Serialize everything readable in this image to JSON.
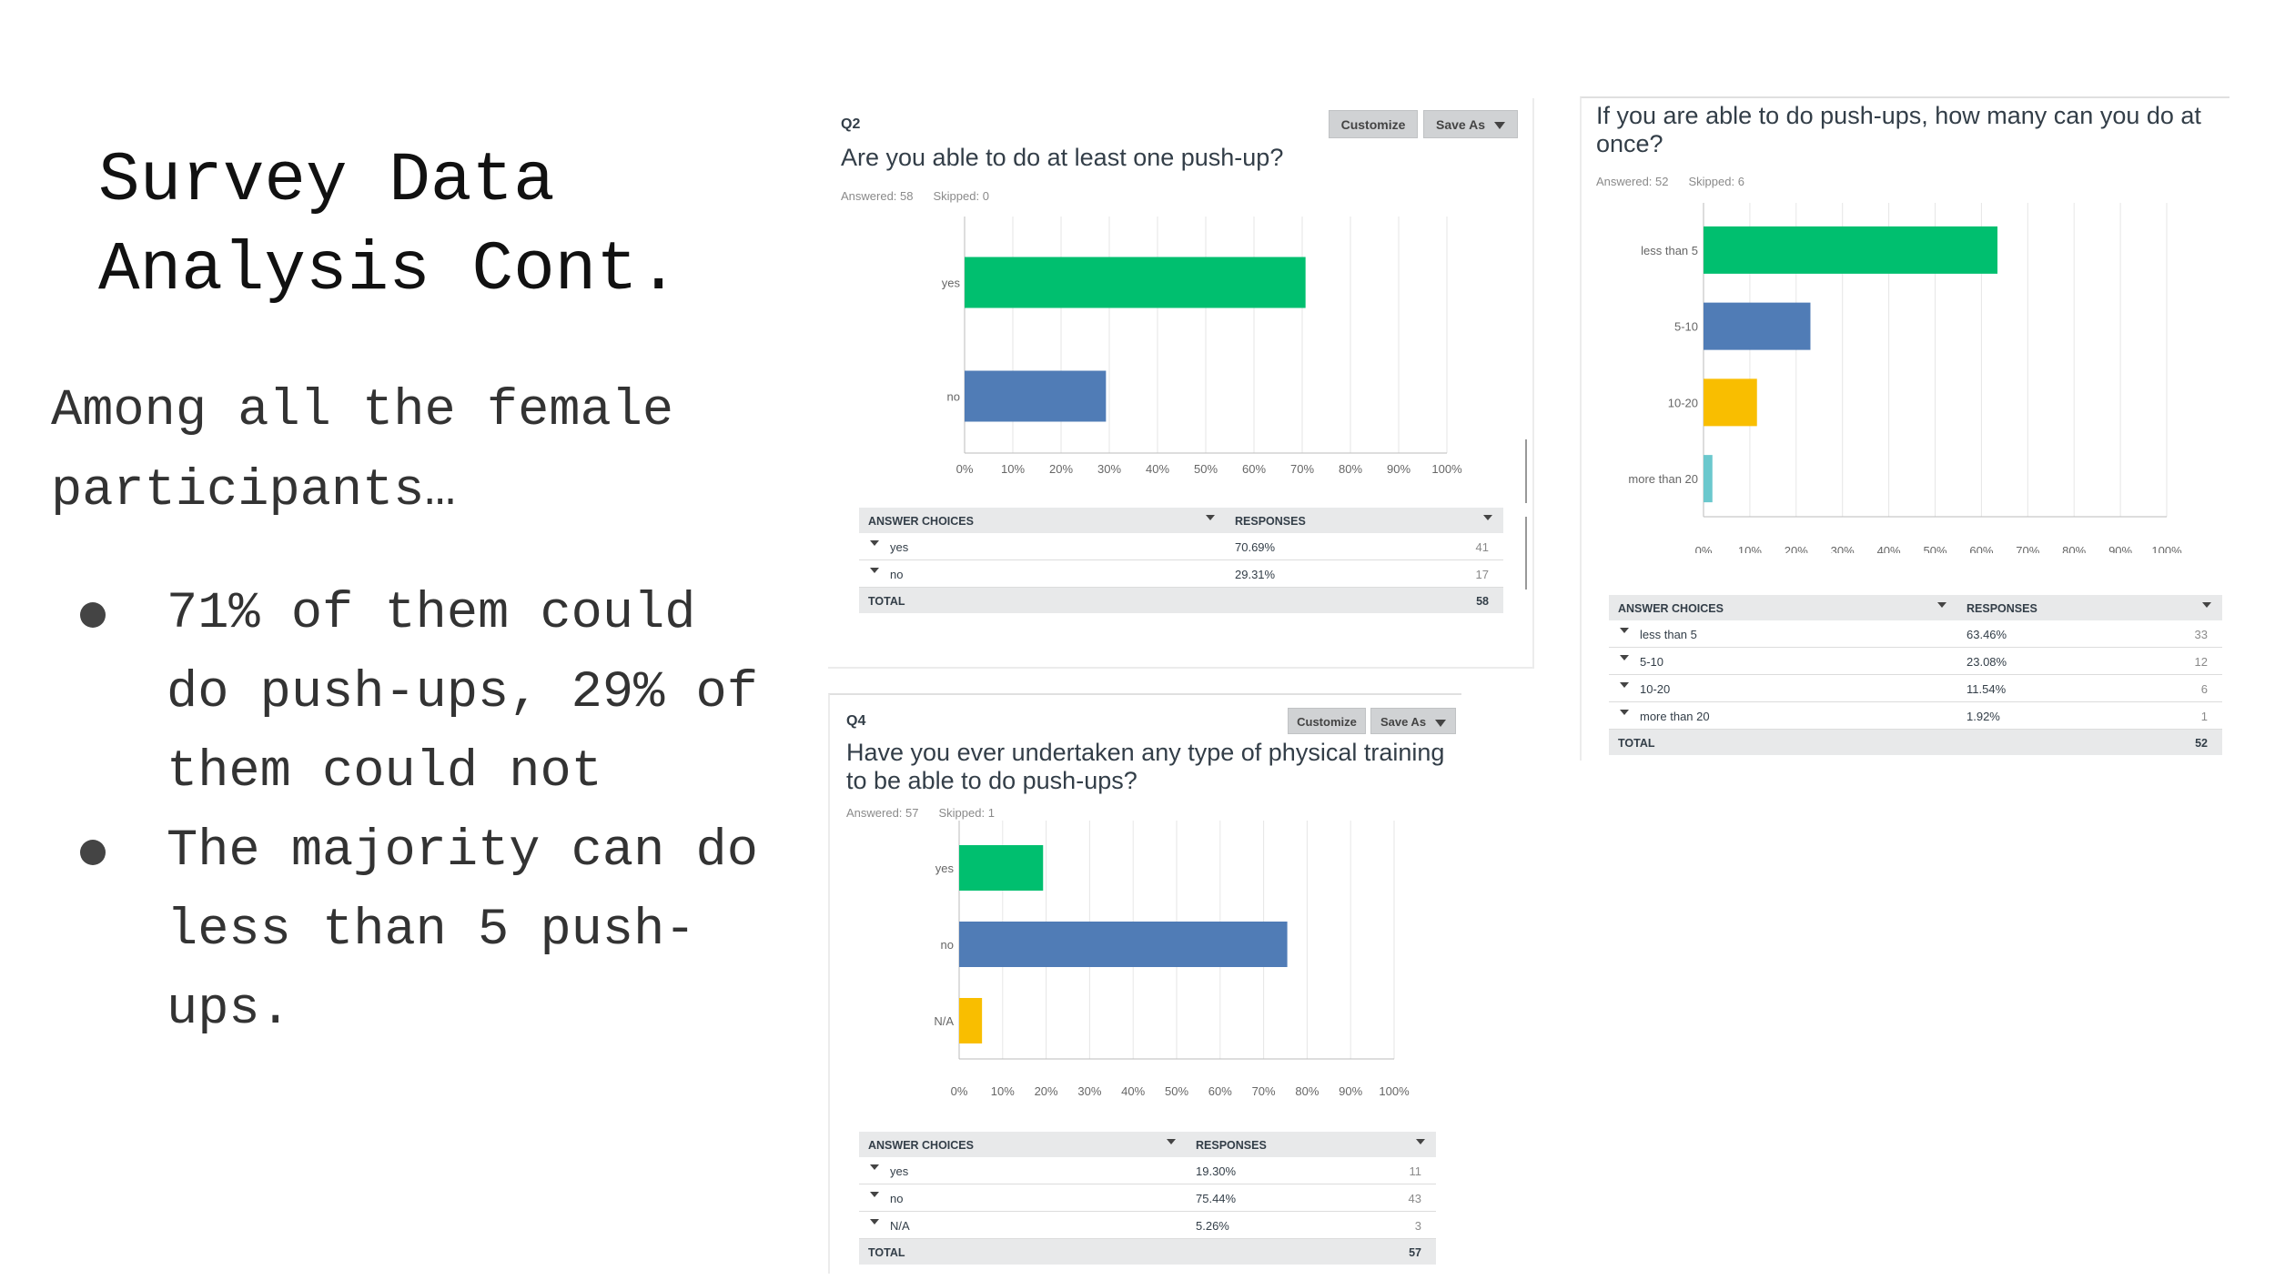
{
  "slide": {
    "title": "Survey Data\nAnalysis Cont.",
    "subtitle": "Among all the female participants…",
    "bullets": [
      "71% of them could do push-ups, 29% of them could not",
      "The majority can do less than 5 push-ups."
    ]
  },
  "buttons": {
    "customize": "Customize",
    "save_as": "Save As"
  },
  "table_headers": {
    "choices": "ANSWER CHOICES",
    "responses": "RESPONSES",
    "total": "TOTAL"
  },
  "colors": {
    "green": "#00bf6f",
    "blue": "#507cb6",
    "yellow": "#f9be00",
    "teal": "#6bc8cd"
  },
  "chart_data": [
    {
      "type": "bar",
      "question_number": "Q2",
      "title": "Are you able to do at least one push-up?",
      "answered": "Answered: 58",
      "skipped": "Skipped: 0",
      "categories": [
        "yes",
        "no"
      ],
      "values": [
        70.69,
        29.31
      ],
      "percent_labels": [
        "70.69%",
        "29.31%"
      ],
      "counts": [
        41,
        17
      ],
      "total": 58,
      "xticks": [
        "0%",
        "10%",
        "20%",
        "30%",
        "40%",
        "50%",
        "60%",
        "70%",
        "80%",
        "90%",
        "100%"
      ],
      "xlim": [
        0,
        100
      ],
      "colors": [
        "#00bf6f",
        "#507cb6"
      ]
    },
    {
      "type": "bar",
      "question_number": "",
      "title": "If you are able to do push-ups, how many can you do at once?",
      "answered": "Answered: 52",
      "skipped": "Skipped: 6",
      "categories": [
        "less than 5",
        "5-10",
        "10-20",
        "more than 20"
      ],
      "values": [
        63.46,
        23.08,
        11.54,
        1.92
      ],
      "percent_labels": [
        "63.46%",
        "23.08%",
        "11.54%",
        "1.92%"
      ],
      "counts": [
        33,
        12,
        6,
        1
      ],
      "total": 52,
      "xticks": [
        "0%",
        "10%",
        "20%",
        "30%",
        "40%",
        "50%",
        "60%",
        "70%",
        "80%",
        "90%",
        "100%"
      ],
      "xlim": [
        0,
        100
      ],
      "colors": [
        "#00bf6f",
        "#507cb6",
        "#f9be00",
        "#6bc8cd"
      ]
    },
    {
      "type": "bar",
      "question_number": "Q4",
      "title": "Have you ever undertaken any type of physical training to be able to do push-ups?",
      "answered": "Answered: 57",
      "skipped": "Skipped: 1",
      "categories": [
        "yes",
        "no",
        "N/A"
      ],
      "values": [
        19.3,
        75.44,
        5.26
      ],
      "percent_labels": [
        "19.30%",
        "75.44%",
        "5.26%"
      ],
      "counts": [
        11,
        43,
        3
      ],
      "total": 57,
      "xticks": [
        "0%",
        "10%",
        "20%",
        "30%",
        "40%",
        "50%",
        "60%",
        "70%",
        "80%",
        "90%",
        "100%"
      ],
      "xlim": [
        0,
        100
      ],
      "colors": [
        "#00bf6f",
        "#507cb6",
        "#f9be00"
      ]
    }
  ]
}
